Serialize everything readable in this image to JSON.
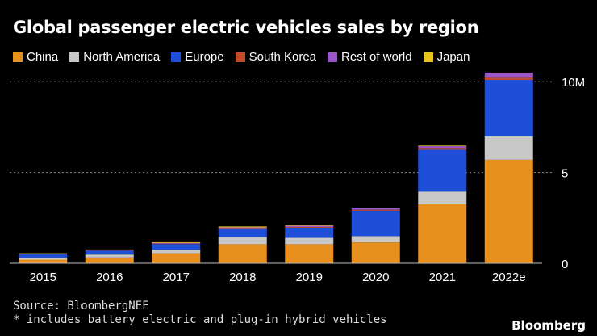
{
  "chart_data": {
    "type": "bar",
    "stacked": true,
    "title": "Global passenger electric vehicles sales by region",
    "categories": [
      "2015",
      "2016",
      "2017",
      "2018",
      "2019",
      "2020",
      "2021",
      "2022e"
    ],
    "series": [
      {
        "name": "China",
        "color": "#e8901e",
        "values": [
          0.2,
          0.32,
          0.55,
          1.05,
          1.05,
          1.15,
          3.25,
          5.7
        ]
      },
      {
        "name": "North America",
        "color": "#c8c8c8",
        "values": [
          0.12,
          0.16,
          0.2,
          0.4,
          0.35,
          0.35,
          0.7,
          1.3
        ]
      },
      {
        "name": "Europe",
        "color": "#1f4fd8",
        "values": [
          0.18,
          0.22,
          0.31,
          0.45,
          0.56,
          1.4,
          2.3,
          3.1
        ]
      },
      {
        "name": "South Korea",
        "color": "#c74a2a",
        "values": [
          0.01,
          0.01,
          0.02,
          0.03,
          0.04,
          0.05,
          0.1,
          0.16
        ]
      },
      {
        "name": "Rest of world",
        "color": "#9a57c8",
        "values": [
          0.02,
          0.03,
          0.04,
          0.05,
          0.07,
          0.08,
          0.1,
          0.2
        ]
      },
      {
        "name": "Japan",
        "color": "#e8c51e",
        "values": [
          0.02,
          0.02,
          0.04,
          0.05,
          0.04,
          0.03,
          0.03,
          0.04
        ]
      }
    ],
    "yticks": [
      {
        "value": 0,
        "label": "0"
      },
      {
        "value": 5,
        "label": "5"
      },
      {
        "value": 10,
        "label": "10M"
      }
    ],
    "ylim": [
      0,
      10.5
    ],
    "xlabel": "",
    "ylabel": ""
  },
  "source": "Source: BloombergNEF",
  "footnote": "* includes battery electric and plug-in hybrid vehicles",
  "brand": "Bloomberg"
}
